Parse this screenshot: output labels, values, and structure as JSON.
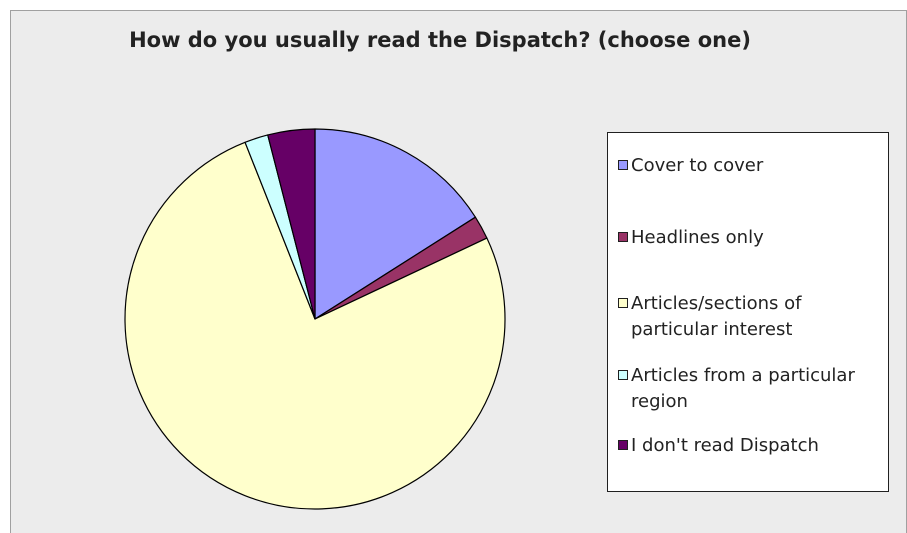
{
  "chart_data": {
    "type": "pie",
    "title": "How do you usually read the Dispatch?  (choose one)",
    "legend_position": "right",
    "categories": [
      "Cover to cover",
      "Headlines only",
      "Articles/sections of particular interest",
      "Articles from a particular region",
      "I don't read Dispatch"
    ],
    "values": [
      16,
      2,
      76,
      2,
      4
    ],
    "colors": [
      "#9999ff",
      "#993366",
      "#ffffcc",
      "#ccffff",
      "#660066"
    ],
    "legend": [
      {
        "label": "Cover to cover",
        "color": "#9999ff"
      },
      {
        "label": "Headlines only",
        "color": "#993366"
      },
      {
        "label": "Articles/sections of particular interest",
        "color": "#ffffcc"
      },
      {
        "label": "Articles from a particular region",
        "color": "#ccffff"
      },
      {
        "label": "I don't read Dispatch",
        "color": "#660066"
      }
    ]
  }
}
